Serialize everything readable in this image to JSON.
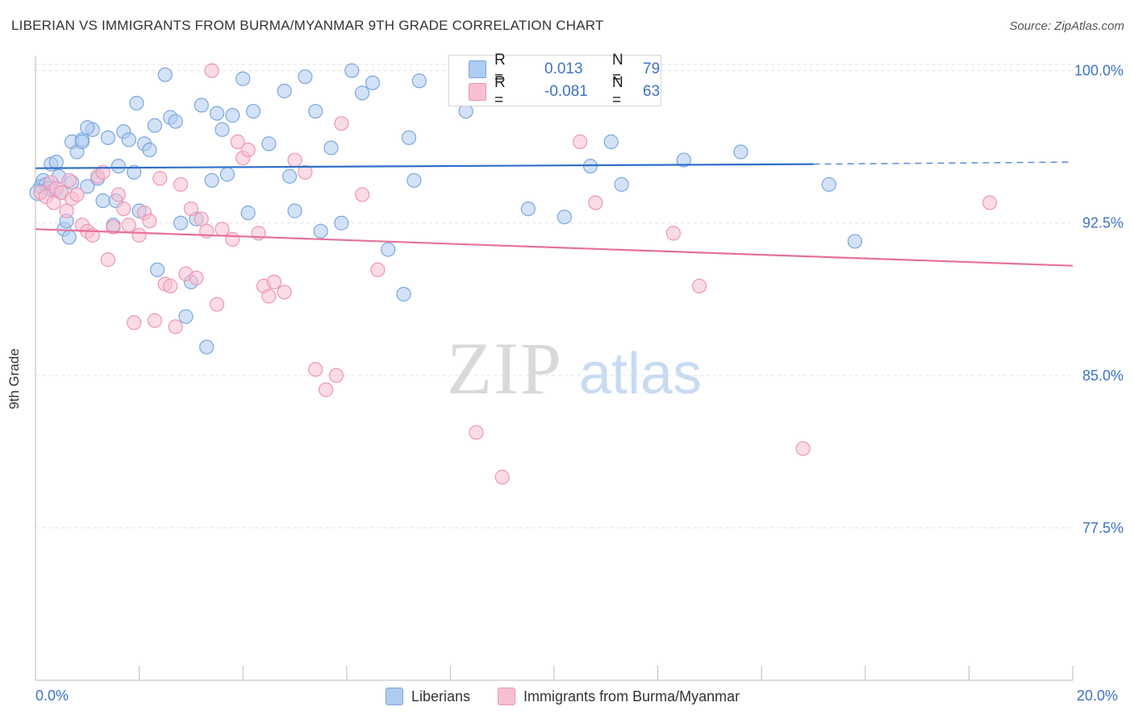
{
  "header": {
    "title": "LIBERIAN VS IMMIGRANTS FROM BURMA/MYANMAR 9TH GRADE CORRELATION CHART",
    "source": "Source: ZipAtlas.com"
  },
  "watermark": {
    "zip": "ZIP",
    "atlas": "atlas"
  },
  "legend": {
    "rows": [
      {
        "r_label": "R =",
        "r_value": "0.013",
        "n_label": "N =",
        "n_value": "79"
      },
      {
        "r_label": "R =",
        "r_value": "-0.081",
        "n_label": "N =",
        "n_value": "63"
      }
    ]
  },
  "bottom_legend": {
    "series1": "Liberians",
    "series2": "Immigrants from Burma/Myanmar"
  },
  "colors": {
    "blue_fill": "#aecbf0",
    "blue_stroke": "#7ba7de",
    "blue_line": "#2f6fcc",
    "pink_fill": "#f7c0d2",
    "pink_stroke": "#ee95b3",
    "pink_line": "#e8709a",
    "axis_label": "#3d72c9",
    "grid": "#e3e3e3"
  },
  "chart_data": {
    "type": "scatter",
    "title": "LIBERIAN VS IMMIGRANTS FROM BURMA/MYANMAR 9TH GRADE CORRELATION CHART",
    "xlabel": "",
    "ylabel": "9th Grade",
    "xlim": [
      0,
      20
    ],
    "ylim": [
      70,
      100.7
    ],
    "x_tick_labels": [
      "0.0%",
      "20.0%"
    ],
    "y_ticks": [
      77.5,
      85.0,
      92.5,
      100.0
    ],
    "y_tick_labels": [
      "77.5%",
      "85.0%",
      "92.5%",
      "100.0%"
    ],
    "grid": true,
    "series": [
      {
        "name": "Liberians",
        "R": 0.013,
        "N": 79,
        "trend": {
          "x0": 0,
          "y0": 95.2,
          "x1": 15.0,
          "y1": 95.4,
          "dashed_to_x": 20.0,
          "dashed_to_y": 95.5
        },
        "points": [
          [
            0.1,
            94.3
          ],
          [
            0.15,
            94.6
          ],
          [
            0.2,
            94.4
          ],
          [
            0.25,
            94.2
          ],
          [
            0.3,
            95.4
          ],
          [
            0.35,
            94.1
          ],
          [
            0.4,
            95.5
          ],
          [
            0.45,
            94.8
          ],
          [
            0.5,
            94.0
          ],
          [
            0.55,
            92.2
          ],
          [
            0.6,
            92.6
          ],
          [
            0.65,
            91.8
          ],
          [
            0.7,
            94.5
          ],
          [
            0.7,
            96.5
          ],
          [
            0.8,
            96.0
          ],
          [
            0.9,
            96.6
          ],
          [
            1.0,
            94.3
          ],
          [
            1.1,
            97.1
          ],
          [
            1.2,
            94.7
          ],
          [
            1.3,
            93.6
          ],
          [
            1.4,
            96.7
          ],
          [
            1.5,
            92.4
          ],
          [
            1.6,
            95.3
          ],
          [
            1.7,
            97.0
          ],
          [
            1.8,
            96.6
          ],
          [
            1.9,
            95.0
          ],
          [
            1.95,
            98.4
          ],
          [
            2.0,
            93.1
          ],
          [
            2.1,
            96.4
          ],
          [
            2.2,
            96.1
          ],
          [
            2.3,
            97.3
          ],
          [
            2.5,
            99.8
          ],
          [
            2.6,
            97.7
          ],
          [
            2.7,
            97.5
          ],
          [
            2.8,
            92.5
          ],
          [
            2.9,
            87.9
          ],
          [
            3.0,
            89.6
          ],
          [
            3.1,
            92.7
          ],
          [
            3.2,
            98.3
          ],
          [
            3.3,
            86.4
          ],
          [
            3.4,
            94.6
          ],
          [
            3.5,
            97.9
          ],
          [
            3.6,
            97.1
          ],
          [
            3.7,
            94.9
          ],
          [
            3.8,
            97.8
          ],
          [
            4.0,
            99.6
          ],
          [
            4.1,
            93.0
          ],
          [
            4.2,
            98.0
          ],
          [
            4.5,
            96.4
          ],
          [
            4.8,
            99.0
          ],
          [
            4.9,
            94.8
          ],
          [
            5.0,
            93.1
          ],
          [
            5.2,
            99.7
          ],
          [
            5.4,
            98.0
          ],
          [
            5.5,
            92.1
          ],
          [
            5.7,
            96.2
          ],
          [
            5.9,
            92.5
          ],
          [
            6.1,
            100.0
          ],
          [
            6.3,
            98.9
          ],
          [
            6.5,
            99.4
          ],
          [
            6.8,
            91.2
          ],
          [
            7.1,
            89.0
          ],
          [
            7.2,
            96.7
          ],
          [
            7.3,
            94.6
          ],
          [
            7.4,
            99.5
          ],
          [
            8.3,
            98.0
          ],
          [
            9.5,
            93.2
          ],
          [
            10.2,
            92.8
          ],
          [
            10.7,
            95.3
          ],
          [
            11.1,
            96.5
          ],
          [
            11.3,
            94.4
          ],
          [
            12.5,
            95.6
          ],
          [
            13.6,
            96.0
          ],
          [
            15.3,
            94.4
          ],
          [
            15.8,
            91.6
          ],
          [
            0.9,
            96.5
          ],
          [
            1.55,
            93.6
          ],
          [
            2.35,
            90.2
          ],
          [
            1.0,
            97.2
          ]
        ]
      },
      {
        "name": "Immigrants from Burma/Myanmar",
        "R": -0.081,
        "N": 63,
        "trend": {
          "x0": 0,
          "y0": 92.2,
          "x1": 20.0,
          "y1": 90.4
        },
        "points": [
          [
            0.1,
            94.0
          ],
          [
            0.2,
            93.8
          ],
          [
            0.3,
            94.5
          ],
          [
            0.35,
            93.5
          ],
          [
            0.4,
            94.2
          ],
          [
            0.5,
            94.0
          ],
          [
            0.6,
            93.1
          ],
          [
            0.65,
            94.6
          ],
          [
            0.7,
            93.7
          ],
          [
            0.8,
            93.9
          ],
          [
            0.9,
            92.4
          ],
          [
            1.0,
            92.1
          ],
          [
            1.1,
            91.9
          ],
          [
            1.2,
            94.8
          ],
          [
            1.3,
            95.0
          ],
          [
            1.4,
            90.7
          ],
          [
            1.5,
            92.3
          ],
          [
            1.6,
            93.9
          ],
          [
            1.7,
            93.2
          ],
          [
            1.8,
            92.4
          ],
          [
            1.9,
            87.6
          ],
          [
            2.0,
            91.9
          ],
          [
            2.1,
            93.0
          ],
          [
            2.2,
            92.6
          ],
          [
            2.3,
            87.7
          ],
          [
            2.4,
            94.7
          ],
          [
            2.5,
            89.5
          ],
          [
            2.6,
            89.4
          ],
          [
            2.7,
            87.4
          ],
          [
            2.8,
            94.4
          ],
          [
            2.9,
            90.0
          ],
          [
            3.0,
            93.2
          ],
          [
            3.1,
            89.8
          ],
          [
            3.2,
            92.7
          ],
          [
            3.3,
            92.1
          ],
          [
            3.4,
            100.0
          ],
          [
            3.5,
            88.5
          ],
          [
            3.6,
            92.2
          ],
          [
            3.8,
            91.7
          ],
          [
            3.9,
            96.5
          ],
          [
            4.0,
            95.7
          ],
          [
            4.1,
            96.1
          ],
          [
            4.3,
            92.0
          ],
          [
            4.4,
            89.4
          ],
          [
            4.5,
            88.9
          ],
          [
            4.6,
            89.6
          ],
          [
            4.8,
            89.1
          ],
          [
            5.0,
            95.6
          ],
          [
            5.2,
            95.0
          ],
          [
            5.4,
            85.3
          ],
          [
            5.6,
            84.3
          ],
          [
            5.8,
            85.0
          ],
          [
            5.9,
            97.4
          ],
          [
            6.3,
            93.9
          ],
          [
            6.6,
            90.2
          ],
          [
            8.5,
            82.2
          ],
          [
            9.0,
            80.0
          ],
          [
            10.5,
            96.5
          ],
          [
            10.8,
            93.5
          ],
          [
            12.3,
            92.0
          ],
          [
            14.8,
            81.4
          ],
          [
            18.4,
            93.5
          ],
          [
            12.8,
            89.4
          ]
        ]
      }
    ]
  }
}
